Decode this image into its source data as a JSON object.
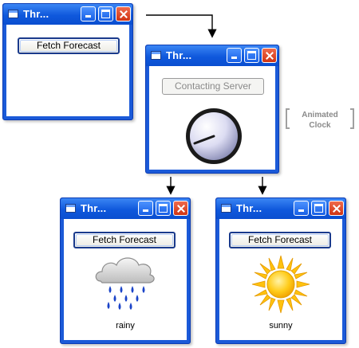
{
  "window_title": "Thr...",
  "windows": {
    "initial": {
      "button_label": "Fetch Forecast"
    },
    "loading": {
      "button_label": "Contacting Server",
      "side_label": "Animated\nClock"
    },
    "rainy": {
      "button_label": "Fetch Forecast",
      "result_label": "rainy"
    },
    "sunny": {
      "button_label": "Fetch Forecast",
      "result_label": "sunny"
    }
  },
  "icons": {
    "window": "window-app-icon",
    "minimize": "minimize-icon",
    "maximize": "maximize-icon",
    "close": "close-icon",
    "clock": "analog-clock-icon",
    "rain": "rain-cloud-icon",
    "sun": "sun-icon"
  },
  "colors": {
    "titlebar": "#0f58dc",
    "close_button": "#e04d2c",
    "rain_drop": "#1a43c8",
    "sun": "#ffb800"
  }
}
